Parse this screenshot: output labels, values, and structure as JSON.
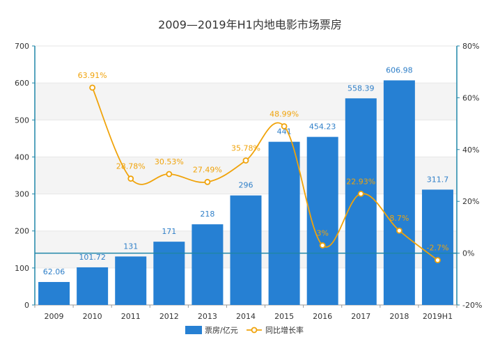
{
  "chart_data": {
    "type": "bar",
    "title": "2009—2019年H1内地电影市场票房",
    "categories": [
      "2009",
      "2010",
      "2011",
      "2012",
      "2013",
      "2014",
      "2015",
      "2016",
      "2017",
      "2018",
      "2019H1"
    ],
    "series": [
      {
        "name": "票房/亿元",
        "type": "bar",
        "axis": "left",
        "values": [
          62.06,
          101.72,
          131,
          171,
          218,
          296,
          441,
          454.23,
          558.39,
          606.98,
          311.7
        ],
        "labels": [
          "62.06",
          "101.72",
          "131",
          "171",
          "218",
          "296",
          "441",
          "454.23",
          "558.39",
          "606.98",
          "311.7"
        ],
        "color": "#2680d3"
      },
      {
        "name": "同比增长率",
        "type": "line",
        "axis": "right",
        "values": [
          null,
          63.91,
          28.78,
          30.53,
          27.49,
          35.78,
          48.99,
          3,
          22.93,
          8.7,
          -2.7
        ],
        "labels": [
          "",
          "63.91%",
          "28.78%",
          "30.53%",
          "27.49%",
          "35.78%",
          "48.99%",
          "3%",
          "22.93%",
          "8.7%",
          "-2.7%"
        ],
        "color": "#f0a30a"
      }
    ],
    "y_left": {
      "min": 0,
      "max": 700,
      "ticks": [
        "0",
        "100",
        "200",
        "300",
        "400",
        "500",
        "600",
        "700"
      ]
    },
    "y_right": {
      "min": -20,
      "max": 80,
      "ticks": [
        "-20%",
        "0%",
        "20%",
        "40%",
        "60%",
        "80%"
      ]
    },
    "legend_position": "bottom",
    "grid": true
  }
}
